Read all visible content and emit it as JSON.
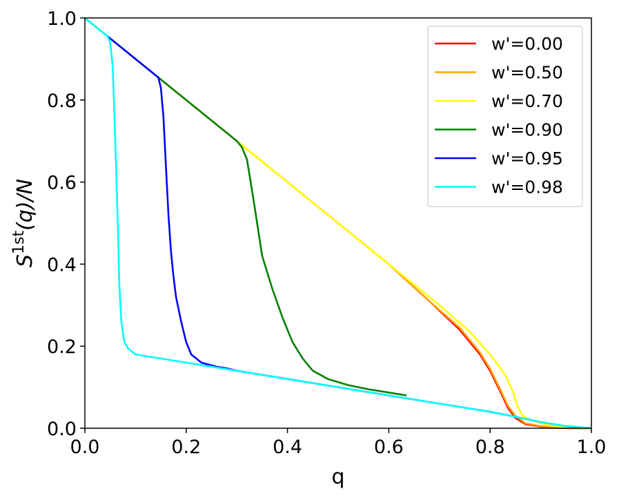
{
  "chart_data": {
    "type": "line",
    "title": "",
    "xlabel": "q",
    "ylabel": {
      "base": "S",
      "sup": "1st",
      "rest": "(q)/N"
    },
    "xlim": [
      0.0,
      1.0
    ],
    "ylim": [
      0.0,
      1.0
    ],
    "xticks": [
      "0.0",
      "0.2",
      "0.4",
      "0.6",
      "0.8",
      "1.0"
    ],
    "yticks": [
      "0.0",
      "0.2",
      "0.4",
      "0.6",
      "0.8",
      "1.0"
    ],
    "grid": false,
    "legend_position": "top-right",
    "series": [
      {
        "name": "w'=0.00",
        "color": "#ff0000",
        "x": [
          0.0,
          0.2,
          0.4,
          0.6,
          0.68,
          0.74,
          0.78,
          0.8,
          0.82,
          0.835,
          0.85,
          0.87,
          0.9,
          0.93,
          0.96,
          1.0
        ],
        "y": [
          1.0,
          0.8,
          0.6,
          0.4,
          0.31,
          0.24,
          0.18,
          0.14,
          0.09,
          0.05,
          0.025,
          0.01,
          0.004,
          0.001,
          0.0,
          0.0
        ]
      },
      {
        "name": "w'=0.50",
        "color": "#ffa500",
        "x": [
          0.0,
          0.2,
          0.4,
          0.6,
          0.68,
          0.74,
          0.78,
          0.8,
          0.82,
          0.835,
          0.85,
          0.87,
          0.9,
          0.93,
          0.96,
          1.0
        ],
        "y": [
          1.0,
          0.8,
          0.6,
          0.4,
          0.31,
          0.245,
          0.185,
          0.145,
          0.095,
          0.055,
          0.03,
          0.012,
          0.005,
          0.002,
          0.0,
          0.0
        ]
      },
      {
        "name": "w'=0.70",
        "color": "#ffff00",
        "x": [
          0.0,
          0.2,
          0.4,
          0.6,
          0.7,
          0.76,
          0.8,
          0.83,
          0.845,
          0.855,
          0.865,
          0.88,
          0.9,
          0.93,
          0.96,
          1.0
        ],
        "y": [
          1.0,
          0.8,
          0.6,
          0.4,
          0.3,
          0.235,
          0.18,
          0.13,
          0.09,
          0.05,
          0.03,
          0.02,
          0.012,
          0.005,
          0.001,
          0.0
        ]
      },
      {
        "name": "w'=0.90",
        "color": "#008000",
        "x": [
          0.0,
          0.1,
          0.2,
          0.29,
          0.3,
          0.31,
          0.32,
          0.33,
          0.34,
          0.35,
          0.37,
          0.39,
          0.41,
          0.43,
          0.45,
          0.48,
          0.52,
          0.56,
          0.6,
          0.635
        ],
        "y": [
          1.0,
          0.9,
          0.8,
          0.71,
          0.7,
          0.685,
          0.655,
          0.58,
          0.5,
          0.42,
          0.34,
          0.27,
          0.21,
          0.17,
          0.14,
          0.12,
          0.105,
          0.095,
          0.087,
          0.08
        ]
      },
      {
        "name": "w'=0.95",
        "color": "#0000ff",
        "x": [
          0.045,
          0.1,
          0.14,
          0.145,
          0.15,
          0.155,
          0.16,
          0.165,
          0.17,
          0.175,
          0.18,
          0.19,
          0.2,
          0.21,
          0.23,
          0.26,
          0.28,
          0.3,
          0.4,
          0.5,
          0.6,
          0.7,
          0.8,
          0.85,
          0.9,
          0.95,
          1.0
        ],
        "y": [
          0.955,
          0.9,
          0.86,
          0.855,
          0.83,
          0.76,
          0.64,
          0.52,
          0.43,
          0.37,
          0.32,
          0.26,
          0.21,
          0.18,
          0.16,
          0.15,
          0.146,
          0.14,
          0.12,
          0.1,
          0.08,
          0.06,
          0.04,
          0.028,
          0.015,
          0.005,
          0.0
        ]
      },
      {
        "name": "w'=0.98",
        "color": "#00ffff",
        "x": [
          0.0,
          0.045,
          0.05,
          0.055,
          0.06,
          0.065,
          0.068,
          0.072,
          0.078,
          0.085,
          0.1,
          0.2,
          0.3,
          0.4,
          0.5,
          0.6,
          0.7,
          0.8,
          0.85,
          0.9,
          0.95,
          1.0
        ],
        "y": [
          1.0,
          0.955,
          0.94,
          0.88,
          0.7,
          0.5,
          0.35,
          0.26,
          0.21,
          0.195,
          0.18,
          0.16,
          0.14,
          0.12,
          0.1,
          0.08,
          0.06,
          0.04,
          0.028,
          0.015,
          0.005,
          0.0
        ]
      }
    ]
  }
}
